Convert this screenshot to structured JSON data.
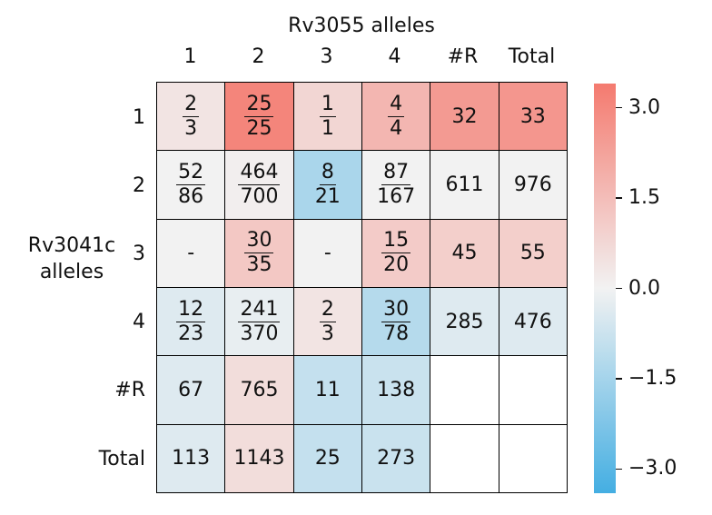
{
  "chart_data": {
    "type": "heatmap",
    "title": "Rv3055 alleles",
    "ylabel_lines": [
      "Rv3041c",
      "alleles"
    ],
    "columns": [
      "1",
      "2",
      "3",
      "4",
      "#R",
      "Total"
    ],
    "rows": [
      "1",
      "2",
      "3",
      "4",
      "#R",
      "Total"
    ],
    "cells": [
      [
        {
          "num": "2",
          "den": "3"
        },
        {
          "num": "25",
          "den": "25"
        },
        {
          "num": "1",
          "den": "1"
        },
        {
          "num": "4",
          "den": "4"
        },
        {
          "text": "32"
        },
        {
          "text": "33"
        }
      ],
      [
        {
          "num": "52",
          "den": "86"
        },
        {
          "num": "464",
          "den": "700"
        },
        {
          "num": "8",
          "den": "21"
        },
        {
          "num": "87",
          "den": "167"
        },
        {
          "text": "611"
        },
        {
          "text": "976"
        }
      ],
      [
        {
          "text": "-"
        },
        {
          "num": "30",
          "den": "35"
        },
        {
          "text": "-"
        },
        {
          "num": "15",
          "den": "20"
        },
        {
          "text": "45"
        },
        {
          "text": "55"
        }
      ],
      [
        {
          "num": "12",
          "den": "23"
        },
        {
          "num": "241",
          "den": "370"
        },
        {
          "num": "2",
          "den": "3"
        },
        {
          "num": "30",
          "den": "78"
        },
        {
          "text": "285"
        },
        {
          "text": "476"
        }
      ],
      [
        {
          "text": "67"
        },
        {
          "text": "765"
        },
        {
          "text": "11"
        },
        {
          "text": "138"
        },
        {
          "text": ""
        },
        {
          "text": ""
        }
      ],
      [
        {
          "text": "113"
        },
        {
          "text": "1143"
        },
        {
          "text": "25"
        },
        {
          "text": "273"
        },
        {
          "text": ""
        },
        {
          "text": ""
        }
      ]
    ],
    "values": [
      [
        0.4,
        3.1,
        0.8,
        1.7,
        2.5,
        2.6
      ],
      [
        0.0,
        0.1,
        -1.4,
        0.0,
        0.0,
        0.0
      ],
      [
        0.0,
        1.2,
        0.0,
        1.1,
        1.0,
        1.0
      ],
      [
        -0.4,
        -0.2,
        0.4,
        -1.2,
        -0.4,
        -0.4
      ],
      [
        -0.4,
        0.6,
        -0.9,
        -0.8,
        null,
        null
      ],
      [
        -0.4,
        0.6,
        -0.9,
        -0.8,
        null,
        null
      ]
    ],
    "colorbar": {
      "min": -3.4,
      "max": 3.4,
      "ticks": [
        3.0,
        1.5,
        0.0,
        -1.5,
        -3.0
      ],
      "tick_labels": [
        "3.0",
        "1.5",
        "0.0",
        "−1.5",
        "−3.0"
      ],
      "colors": {
        "negative": "#44aee2",
        "middle": "#f2f2f2",
        "positive": "#f47a6f"
      }
    }
  }
}
